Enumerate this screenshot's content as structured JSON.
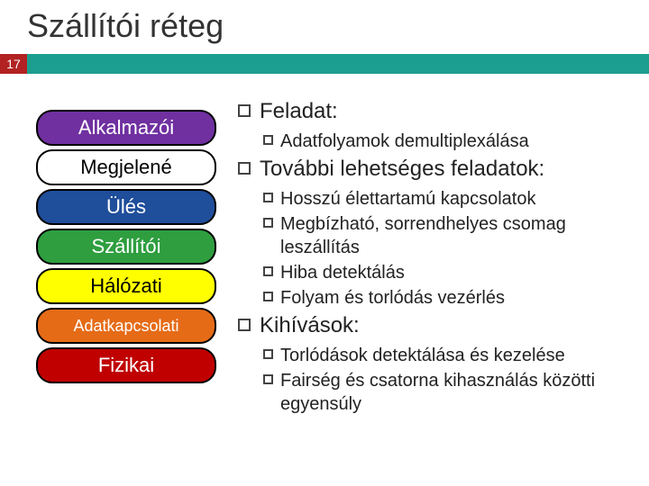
{
  "title": "Szállítói réteg",
  "slide_number": "17",
  "colors": {
    "accent": "#1b9e8f",
    "slide_num_bg": "#b22222",
    "text": "#222222",
    "title_text": "#333333"
  },
  "layers": [
    {
      "label": "Alkalmazói",
      "bg": "#7030a0"
    },
    {
      "label": "Megjelené",
      "bg": "#ffffff",
      "text": "#000000"
    },
    {
      "label": "Ülés",
      "bg": "#1f4e9b"
    },
    {
      "label": "Szállítói",
      "bg": "#2e9e3f"
    },
    {
      "label": "Hálózati",
      "bg": "#ffff00",
      "text": "#000000"
    },
    {
      "label": "Adatkapcsolati",
      "bg": "#e56b17",
      "small": true
    },
    {
      "label": "Fizikai",
      "bg": "#c00000"
    }
  ],
  "content": {
    "sections": [
      {
        "heading": "Feladat:",
        "items": [
          {
            "text": "Adatfolyamok demultiplexálása"
          }
        ]
      },
      {
        "heading": "További lehetséges feladatok:",
        "items": [
          {
            "text": "Hosszú élettartamú kapcsolatok"
          },
          {
            "text": "Megbízható, sorrendhelyes csomag leszállítás"
          },
          {
            "text": "Hiba detektálás"
          },
          {
            "text": "Folyam és torlódás vezérlés"
          }
        ]
      },
      {
        "heading": "Kihívások:",
        "items": [
          {
            "text": "Torlódások detektálása és kezelése"
          },
          {
            "text": "Fairség és csatorna kihasználás közötti egyensúly"
          }
        ]
      }
    ]
  }
}
